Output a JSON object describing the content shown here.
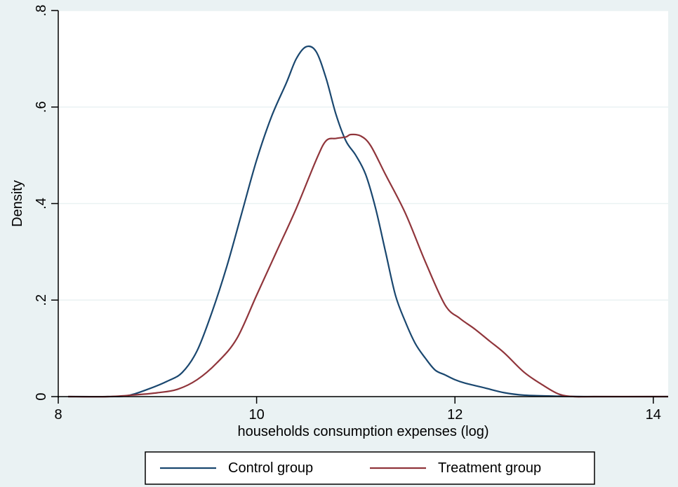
{
  "colors": {
    "background": "#eaf2f3",
    "plot_background": "#ffffff",
    "grid": "#eaf2f3",
    "axis": "#000000"
  },
  "chart_data": {
    "type": "line",
    "xlabel": "households consumption expenses (log)",
    "ylabel": "Density",
    "xlim": [
      8,
      14.15
    ],
    "ylim": [
      0,
      0.8
    ],
    "x_ticks": [
      8,
      10,
      12,
      14
    ],
    "x_tick_labels": [
      "8",
      "10",
      "12",
      "14"
    ],
    "y_ticks": [
      0,
      0.2,
      0.4,
      0.6,
      0.8
    ],
    "y_tick_labels": [
      "0",
      ".2",
      ".4",
      ".6",
      ".8"
    ],
    "grid": true,
    "legend_position": "bottom",
    "series": [
      {
        "name": "Control group",
        "color": "#1a476f",
        "x": [
          8.1,
          8.5,
          8.7,
          8.9,
          9.1,
          9.25,
          9.4,
          9.55,
          9.7,
          9.85,
          10.0,
          10.15,
          10.3,
          10.4,
          10.5,
          10.6,
          10.7,
          10.8,
          10.9,
          11.0,
          11.1,
          11.2,
          11.3,
          11.4,
          11.5,
          11.6,
          11.7,
          11.8,
          11.9,
          12.0,
          12.1,
          12.3,
          12.5,
          12.7,
          13.0,
          13.3,
          14.15
        ],
        "y": [
          0.0,
          0.0,
          0.002,
          0.015,
          0.032,
          0.05,
          0.095,
          0.175,
          0.27,
          0.38,
          0.49,
          0.58,
          0.65,
          0.7,
          0.725,
          0.715,
          0.66,
          0.585,
          0.53,
          0.5,
          0.46,
          0.39,
          0.3,
          0.21,
          0.155,
          0.11,
          0.08,
          0.055,
          0.045,
          0.035,
          0.028,
          0.018,
          0.008,
          0.003,
          0.001,
          0.0,
          0.0
        ]
      },
      {
        "name": "Treatment group",
        "color": "#90353b",
        "x": [
          8.1,
          8.5,
          8.8,
          9.0,
          9.2,
          9.4,
          9.6,
          9.8,
          10.0,
          10.2,
          10.4,
          10.6,
          10.7,
          10.8,
          10.9,
          10.95,
          11.05,
          11.15,
          11.3,
          11.5,
          11.7,
          11.9,
          12.05,
          12.2,
          12.35,
          12.5,
          12.7,
          12.9,
          13.05,
          13.2,
          13.4,
          14.15
        ],
        "y": [
          0.0,
          0.0,
          0.004,
          0.008,
          0.015,
          0.035,
          0.07,
          0.12,
          0.21,
          0.3,
          0.39,
          0.49,
          0.53,
          0.535,
          0.538,
          0.543,
          0.54,
          0.52,
          0.46,
          0.38,
          0.28,
          0.19,
          0.162,
          0.14,
          0.115,
          0.09,
          0.05,
          0.022,
          0.005,
          0.0,
          0.0,
          0.0
        ]
      }
    ]
  }
}
